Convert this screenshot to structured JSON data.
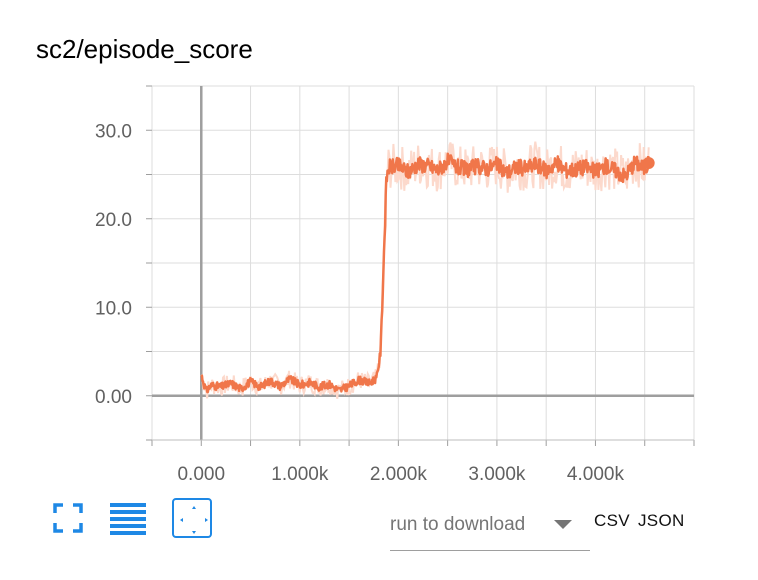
{
  "title": "sc2/episode_score",
  "toolbar": {
    "fullscreen_icon": "fullscreen-icon",
    "log_icon": "list-icon",
    "fit_icon": "fit-domain-icon",
    "accent_color": "#1e88e5"
  },
  "download": {
    "placeholder": "run to download",
    "csv_label": "CSV",
    "json_label": "JSON"
  },
  "chart_data": {
    "type": "line",
    "title": "sc2/episode_score",
    "xlabel": "",
    "ylabel": "",
    "xlim": [
      -500,
      5000
    ],
    "ylim": [
      -5,
      35
    ],
    "x_ticks": [
      0,
      1000,
      2000,
      3000,
      4000
    ],
    "x_tick_labels": [
      "0.000",
      "1.000k",
      "2.000k",
      "3.000k",
      "4.000k"
    ],
    "y_ticks": [
      0,
      10,
      20,
      30
    ],
    "y_tick_labels": [
      "0.00",
      "10.0",
      "20.0",
      "30.0"
    ],
    "grid": true,
    "series_color": "#f0764a",
    "raw_color": "#fcd9cc",
    "series": [
      {
        "name": "",
        "x": [
          0,
          50,
          100,
          200,
          300,
          400,
          500,
          600,
          700,
          800,
          900,
          1000,
          1100,
          1200,
          1300,
          1400,
          1500,
          1600,
          1700,
          1780,
          1820,
          1850,
          1880,
          1900,
          2000,
          2100,
          2200,
          2300,
          2400,
          2500,
          2600,
          2700,
          2800,
          2900,
          3000,
          3100,
          3200,
          3300,
          3400,
          3500,
          3600,
          3700,
          3800,
          3900,
          4000,
          4100,
          4200,
          4300,
          4400,
          4500,
          4540
        ],
        "y": [
          2.4,
          0.5,
          1.2,
          1.0,
          1.4,
          0.8,
          1.6,
          1.0,
          1.7,
          1.1,
          1.9,
          1.2,
          1.5,
          1.0,
          1.3,
          0.6,
          1.1,
          1.8,
          1.4,
          2.0,
          5.0,
          15.0,
          24.5,
          25.8,
          26.0,
          25.3,
          26.2,
          26.0,
          25.5,
          26.5,
          25.8,
          25.6,
          25.9,
          25.7,
          26.1,
          25.2,
          25.9,
          25.7,
          26.2,
          25.4,
          26.3,
          25.5,
          25.6,
          25.9,
          25.3,
          26.0,
          25.5,
          24.8,
          26.4,
          25.7,
          26.3
        ]
      }
    ]
  }
}
